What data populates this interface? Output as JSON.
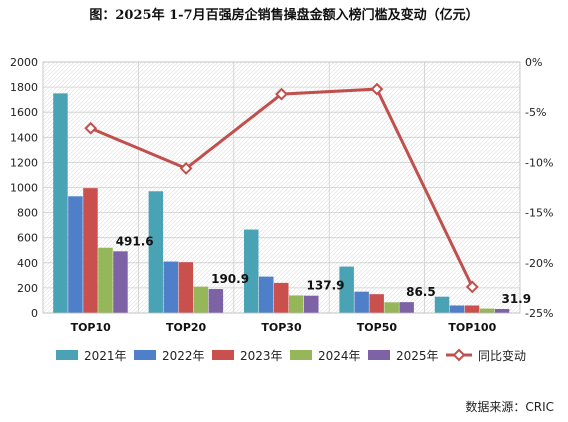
{
  "chart_data": {
    "type": "bar",
    "title": "图：2025年 1-7月百强房企销售操盘金额入榜门槛及变动（亿元）",
    "categories": [
      "TOP10",
      "TOP20",
      "TOP30",
      "TOP50",
      "TOP100"
    ],
    "series": [
      {
        "name": "2021年",
        "color": "#4aa3b5",
        "values": [
          1750,
          970,
          665,
          370,
          130
        ]
      },
      {
        "name": "2022年",
        "color": "#4f7fc9",
        "values": [
          930,
          410,
          290,
          170,
          60
        ]
      },
      {
        "name": "2023年",
        "color": "#c9504d",
        "values": [
          995,
          405,
          240,
          150,
          60
        ]
      },
      {
        "name": "2024年",
        "color": "#96b65a",
        "values": [
          520,
          210,
          140,
          85,
          35
        ]
      },
      {
        "name": "2025年",
        "color": "#7d62a6",
        "values": [
          491.6,
          190.9,
          137.9,
          86.5,
          31.9
        ]
      }
    ],
    "line_series": {
      "name": "同比变动",
      "color": "#c0504d",
      "axis": "right",
      "values": [
        -6.6,
        -10.6,
        -3.2,
        -2.7,
        -22.4
      ]
    },
    "data_labels": [
      "491.6",
      "190.9",
      "137.9",
      "86.5",
      "31.9"
    ],
    "y_left": {
      "min": 0,
      "max": 2000,
      "ticks": [
        "0",
        "200",
        "400",
        "600",
        "800",
        "1000",
        "1200",
        "1400",
        "1600",
        "1800",
        "2000"
      ]
    },
    "y_right": {
      "min": -25,
      "max": 0,
      "ticks": [
        "-25%",
        "-20%",
        "-15%",
        "-10%",
        "-5%",
        "0%"
      ]
    },
    "legend_position": "bottom",
    "grid": true
  },
  "source": "数据来源：CRIC"
}
